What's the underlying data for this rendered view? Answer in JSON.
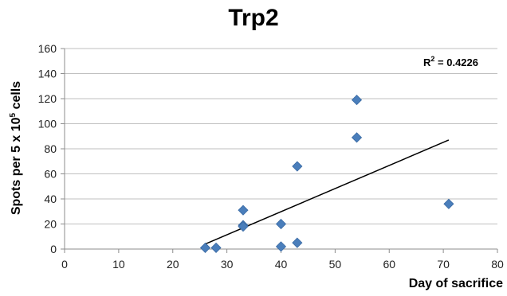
{
  "chart_data": {
    "type": "scatter",
    "title": "Trp2",
    "xlabel": "Day of sacrifice",
    "ylabel_prefix": "Spots per 5 x 10",
    "ylabel_superscript": "5",
    "ylabel_suffix": " cells",
    "xlim": [
      0,
      80
    ],
    "ylim": [
      0,
      160
    ],
    "xticks": [
      0,
      10,
      20,
      30,
      40,
      50,
      60,
      70,
      80
    ],
    "yticks": [
      0,
      20,
      40,
      60,
      80,
      100,
      120,
      140,
      160
    ],
    "grid": "horizontal",
    "legend": "none",
    "marker": "diamond",
    "marker_color": "#4a7ebb",
    "trendline_color": "#000000",
    "points": [
      {
        "x": 26,
        "y": 1
      },
      {
        "x": 28,
        "y": 1
      },
      {
        "x": 33,
        "y": 31
      },
      {
        "x": 33,
        "y": 19
      },
      {
        "x": 33,
        "y": 18
      },
      {
        "x": 40,
        "y": 20
      },
      {
        "x": 40,
        "y": 2
      },
      {
        "x": 43,
        "y": 66
      },
      {
        "x": 43,
        "y": 5
      },
      {
        "x": 54,
        "y": 119
      },
      {
        "x": 54,
        "y": 89
      },
      {
        "x": 71,
        "y": 36
      }
    ],
    "trendline": {
      "x_start": 26,
      "y_start": 4,
      "x_end": 71,
      "y_end": 87
    },
    "r2_prefix": "R",
    "r2_superscript": "2",
    "r2_value": " = 0.4226"
  }
}
